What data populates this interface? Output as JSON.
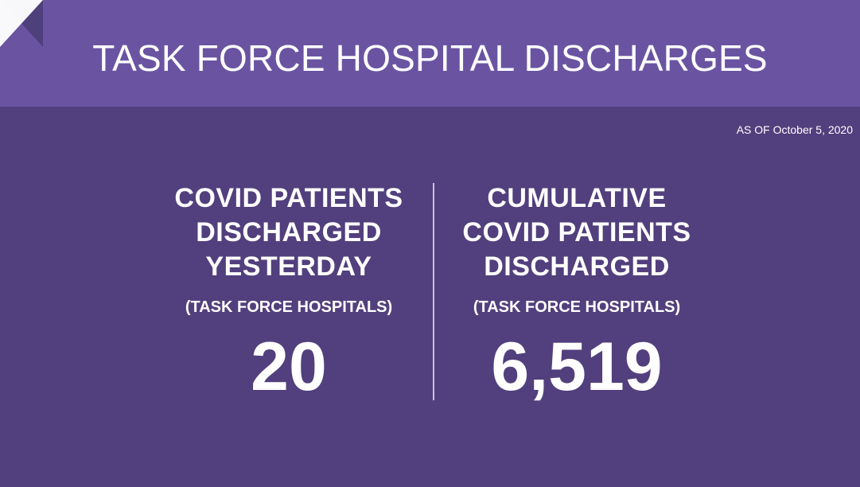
{
  "header": {
    "title": "TASK FORCE HOSPITAL DISCHARGES"
  },
  "as_of": "AS OF October 5, 2020",
  "stats": [
    {
      "heading_lines": [
        "COVID PATIENTS",
        "DISCHARGED",
        "YESTERDAY"
      ],
      "subheading": "(TASK FORCE HOSPITALS)",
      "value": "20"
    },
    {
      "heading_lines": [
        "CUMULATIVE",
        "COVID PATIENTS",
        "DISCHARGED"
      ],
      "subheading": "(TASK FORCE HOSPITALS)",
      "value": "6,519"
    }
  ],
  "colors": {
    "background": "#523f7d",
    "header": "#6a54a2",
    "fold_dark": "#4e3f7d",
    "fold_light": "#ffffff",
    "text": "#ffffff",
    "divider": "#cbc2dc"
  }
}
